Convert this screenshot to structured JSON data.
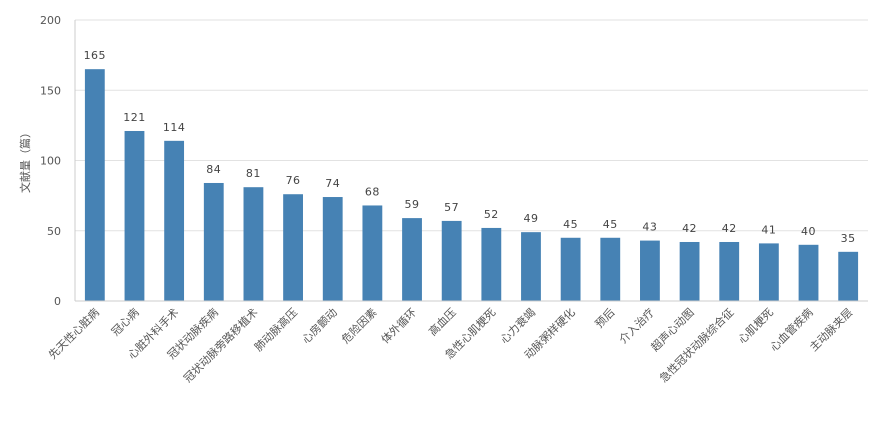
{
  "chart_data": {
    "type": "bar",
    "title": "",
    "xlabel": "",
    "ylabel": "文献量（篇）",
    "ylim": [
      0,
      200
    ],
    "yticks": [
      0,
      50,
      100,
      150,
      200
    ],
    "grid": true,
    "bar_color": "#4682b4",
    "categories": [
      "先天性心脏病",
      "冠心病",
      "心脏外科手术",
      "冠状动脉疾病",
      "冠状动脉旁路移植术",
      "肺动脉高压",
      "心房颤动",
      "危险因素",
      "体外循环",
      "高血压",
      "急性心肌梗死",
      "心力衰竭",
      "动脉粥样硬化",
      "预后",
      "介入治疗",
      "超声心动图",
      "急性冠状动脉综合征",
      "心肌梗死",
      "心血管疾病",
      "主动脉夹层"
    ],
    "values": [
      165,
      121,
      114,
      84,
      81,
      76,
      74,
      68,
      59,
      57,
      52,
      49,
      45,
      45,
      43,
      42,
      42,
      41,
      40,
      35
    ]
  }
}
